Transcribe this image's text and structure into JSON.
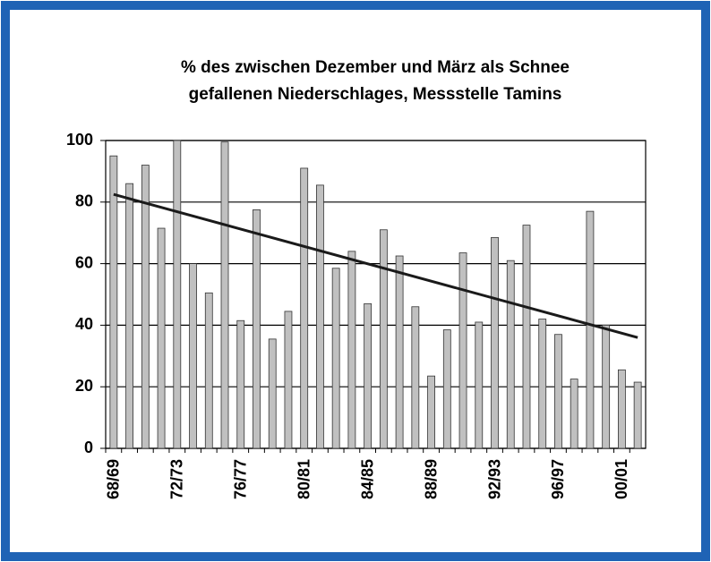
{
  "chart_data": {
    "type": "bar",
    "title": [
      "% des zwischen Dezember und März als Schnee",
      "gefallenen Niederschlages, Messstelle Tamins"
    ],
    "categories": [
      "68/69",
      null,
      null,
      null,
      "72/73",
      null,
      null,
      null,
      "76/77",
      null,
      null,
      null,
      "80/81",
      null,
      null,
      null,
      "84/85",
      null,
      null,
      null,
      "88/89",
      null,
      null,
      null,
      "92/93",
      null,
      null,
      null,
      "96/97",
      null,
      null,
      null,
      "00/01",
      null
    ],
    "values": [
      95,
      86,
      92,
      71.5,
      100,
      60,
      50.5,
      99.5,
      41.5,
      77.5,
      35.5,
      44.5,
      91,
      85.5,
      58.5,
      64,
      47,
      71,
      62.5,
      46,
      23.5,
      38.5,
      63.5,
      41,
      68.5,
      61,
      72.5,
      42,
      37,
      22.5,
      77,
      40,
      25.5,
      21.5
    ],
    "color": "#c0c0c0",
    "trendline": {
      "values": [
        82.5,
        36
      ],
      "color": "#1a1a1a"
    },
    "ylim": [
      0,
      100
    ],
    "yticks": [
      0,
      20,
      40,
      60,
      80,
      100
    ],
    "grid": true
  }
}
